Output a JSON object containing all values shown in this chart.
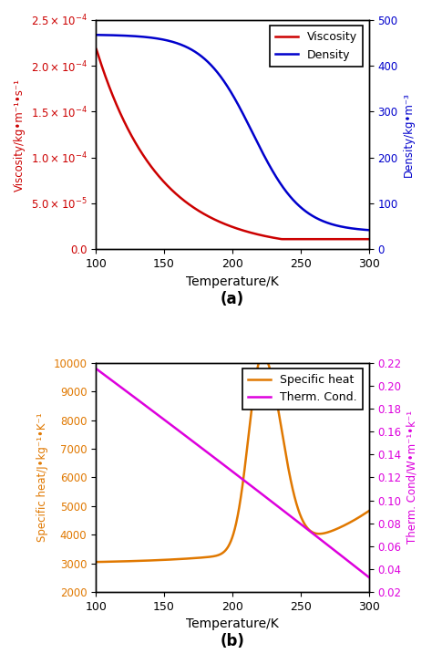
{
  "fig_width": 4.74,
  "fig_height": 7.28,
  "dpi": 100,
  "temp_range": [
    100,
    300
  ],
  "temp_ticks": [
    100,
    150,
    200,
    250,
    300
  ],
  "panel_a": {
    "viscosity_color": "#cc0000",
    "density_color": "#0000cc",
    "ylabel_left": "Viscosity/kg•m⁻¹•s⁻¹",
    "ylabel_right": "Density/kg•m⁻³",
    "xlabel": "Temperature/K",
    "label_a": "(a)",
    "ylim_left": [
      0,
      0.00025
    ],
    "ylim_right": [
      0,
      500
    ],
    "yticks_left": [
      0,
      5e-05,
      0.0001,
      0.00015,
      0.0002,
      0.00025
    ],
    "yticks_right": [
      0,
      100,
      200,
      300,
      400,
      500
    ],
    "legend_labels": [
      "Viscosity",
      "Density"
    ],
    "legend_loc": "upper right"
  },
  "panel_b": {
    "specheat_color": "#e07800",
    "thermcond_color": "#dd00dd",
    "ylabel_left": "Specific heat/J•kg⁻¹•K⁻¹",
    "ylabel_right": "Therm. Cond/W•m⁻¹•k⁻¹",
    "xlabel": "Temperature/K",
    "label_b": "(b)",
    "ylim_left": [
      2000,
      10000
    ],
    "ylim_right": [
      0.02,
      0.22
    ],
    "yticks_left": [
      2000,
      3000,
      4000,
      5000,
      6000,
      7000,
      8000,
      9000,
      10000
    ],
    "yticks_right": [
      0.02,
      0.04,
      0.06,
      0.08,
      0.1,
      0.12,
      0.14,
      0.16,
      0.18,
      0.2,
      0.22
    ],
    "legend_labels": [
      "Specific heat",
      "Therm. Cond."
    ],
    "legend_loc": "upper right"
  }
}
